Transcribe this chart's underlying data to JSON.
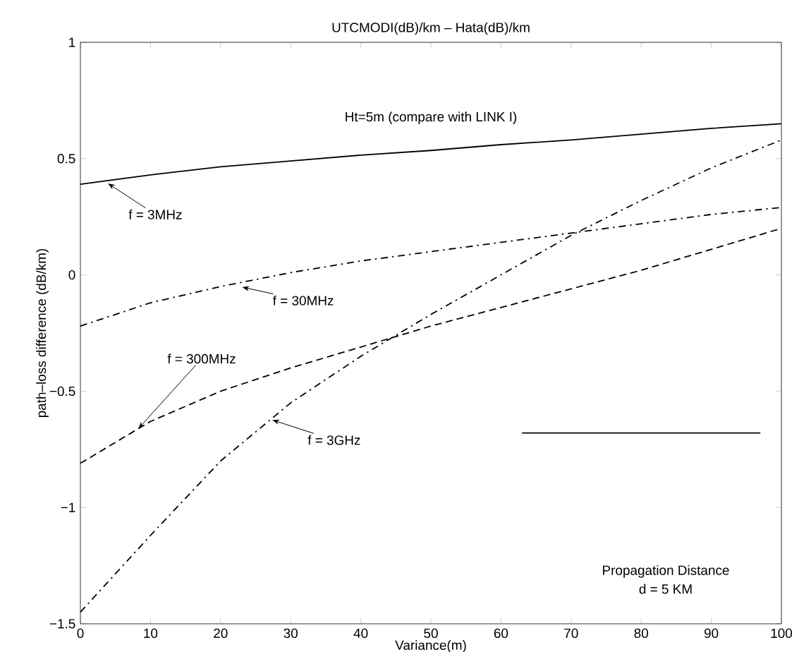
{
  "chart_data": {
    "type": "line",
    "title": "UTCMODI(dB)/km – Hata(dB)/km",
    "xlabel": "Variance(m)",
    "ylabel": "path–loss difference (dB/km)",
    "x": [
      0,
      10,
      20,
      30,
      40,
      50,
      60,
      70,
      80,
      90,
      100
    ],
    "series": [
      {
        "color": "#000000",
        "line_style": "solid",
        "values": [
          0.39,
          0.43,
          0.465,
          0.49,
          0.515,
          0.535,
          0.56,
          0.58,
          0.605,
          0.63,
          0.65
        ]
      },
      {
        "color": "#000000",
        "line_style": "dashdot",
        "values": [
          -0.22,
          -0.12,
          -0.05,
          0.01,
          0.06,
          0.1,
          0.14,
          0.18,
          0.22,
          0.26,
          0.29
        ]
      },
      {
        "color": "#000000",
        "line_style": "dashed",
        "values": [
          -0.81,
          -0.63,
          -0.5,
          -0.4,
          -0.31,
          -0.22,
          -0.14,
          -0.06,
          0.02,
          0.11,
          0.2
        ]
      },
      {
        "color": "#000000",
        "line_style": "dashdot",
        "values": [
          -1.45,
          -1.12,
          -0.8,
          -0.55,
          -0.35,
          -0.17,
          0.0,
          0.17,
          0.32,
          0.46,
          0.58
        ]
      },
      {
        "color": "#000000",
        "line_style": "solid",
        "x": [
          63,
          97
        ],
        "values": [
          -0.68,
          -0.68
        ]
      }
    ],
    "xlim": [
      0,
      100
    ],
    "ylim": [
      -1.5,
      1
    ],
    "xticks": [
      0,
      10,
      20,
      30,
      40,
      50,
      60,
      70,
      80,
      90,
      100
    ],
    "yticks": [
      {
        "value": -1.5,
        "label": "−1.5"
      },
      {
        "value": -1,
        "label": "−1"
      },
      {
        "value": -0.5,
        "label": "−0.5"
      },
      0,
      0.5,
      1
    ],
    "marker": "none",
    "annotations": [
      {
        "text": "f = 3MHz",
        "x": 3.6,
        "y": 0.4
      },
      {
        "text": "f = 30MHz",
        "x": 22.7,
        "y": -0.05
      },
      {
        "text": "f = 300MHz",
        "x": 8,
        "y": -0.67
      },
      {
        "text": "f = 3GHz",
        "x": 27,
        "y": -0.62
      },
      "Ht=5m (compare with LINK I)",
      "Propagation Distance",
      "d = 5 KM"
    ]
  }
}
